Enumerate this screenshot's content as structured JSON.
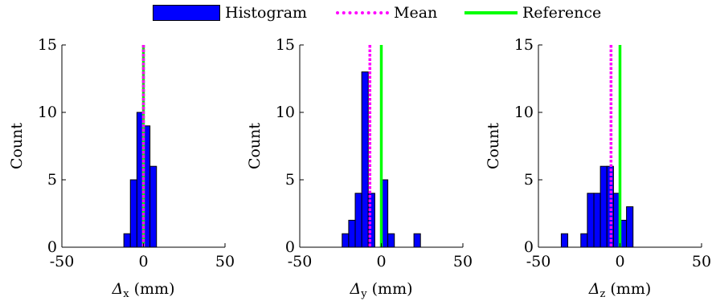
{
  "legend": {
    "histogram": "Histogram",
    "mean": "Mean",
    "reference": "Reference"
  },
  "colors": {
    "histogram_fill": "#0000ff",
    "histogram_edge": "#000000",
    "mean_line": "#ff00ff",
    "reference_line": "#00ff00"
  },
  "chart_data": [
    {
      "type": "bar",
      "subtype": "histogram",
      "xlabel_symbol": "Δ",
      "xlabel_subscript": "x",
      "xlabel_unit": "(mm)",
      "ylabel": "Count",
      "xlim": [
        -50,
        50
      ],
      "ylim": [
        0,
        15
      ],
      "xticks": [
        -50,
        0,
        50
      ],
      "yticks": [
        0,
        5,
        10,
        15
      ],
      "xtick_labels": [
        "-50",
        "0",
        "50"
      ],
      "ytick_labels": [
        "0",
        "5",
        "10",
        "15"
      ],
      "bin_edges": [
        -40,
        -36,
        -32,
        -28,
        -24,
        -20,
        -16,
        -12,
        -8,
        -4,
        0,
        4,
        8,
        12,
        16,
        20,
        24,
        28,
        32,
        36,
        40
      ],
      "counts": [
        0,
        0,
        0,
        0,
        0,
        0,
        0,
        1,
        5,
        10,
        9,
        6,
        0,
        0,
        0,
        0,
        0,
        0,
        0,
        0
      ],
      "mean": 0.0,
      "reference": 0
    },
    {
      "type": "bar",
      "subtype": "histogram",
      "xlabel_symbol": "Δ",
      "xlabel_subscript": "y",
      "xlabel_unit": "(mm)",
      "ylabel": "Count",
      "xlim": [
        -50,
        50
      ],
      "ylim": [
        0,
        15
      ],
      "xticks": [
        -50,
        0,
        50
      ],
      "yticks": [
        0,
        5,
        10,
        15
      ],
      "xtick_labels": [
        "-50",
        "0",
        "50"
      ],
      "ytick_labels": [
        "0",
        "5",
        "10",
        "15"
      ],
      "bin_edges": [
        -40,
        -36,
        -32,
        -28,
        -24,
        -20,
        -16,
        -12,
        -8,
        -4,
        0,
        4,
        8,
        12,
        16,
        20,
        24,
        28,
        32,
        36,
        40
      ],
      "counts": [
        0,
        0,
        0,
        0,
        1,
        2,
        4,
        13,
        4,
        0,
        5,
        1,
        0,
        0,
        0,
        1,
        0,
        0,
        0,
        0
      ],
      "mean": -7.0,
      "reference": 0
    },
    {
      "type": "bar",
      "subtype": "histogram",
      "xlabel_symbol": "Δ",
      "xlabel_subscript": "z",
      "xlabel_unit": "(mm)",
      "ylabel": "Count",
      "xlim": [
        -50,
        50
      ],
      "ylim": [
        0,
        15
      ],
      "xticks": [
        -50,
        0,
        50
      ],
      "yticks": [
        0,
        5,
        10,
        15
      ],
      "xtick_labels": [
        "-50",
        "0",
        "50"
      ],
      "ytick_labels": [
        "0",
        "5",
        "10",
        "15"
      ],
      "bin_edges": [
        -40,
        -36,
        -32,
        -28,
        -24,
        -20,
        -16,
        -12,
        -8,
        -4,
        0,
        4,
        8,
        12,
        16,
        20,
        24,
        28,
        32,
        36,
        40
      ],
      "counts": [
        0,
        1,
        0,
        0,
        1,
        4,
        4,
        6,
        6,
        4,
        2,
        3,
        0,
        0,
        0,
        0,
        0,
        0,
        0,
        0
      ],
      "mean": -5.5,
      "reference": 0
    }
  ]
}
